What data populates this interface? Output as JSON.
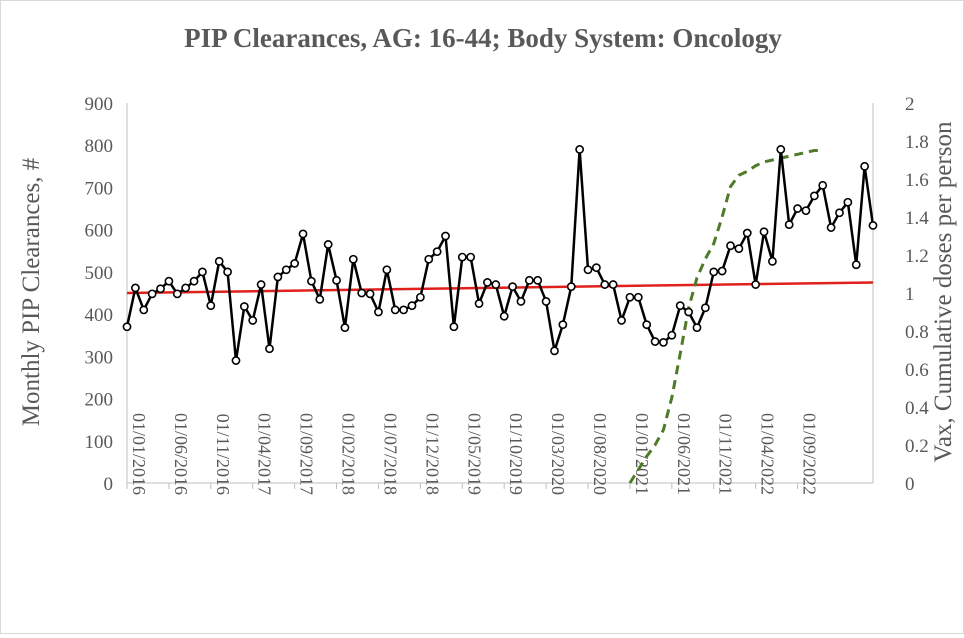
{
  "chart_data": {
    "type": "line",
    "title": "PIP Clearances, AG: 16-44; Body System: Oncology",
    "ylabel": "Monthly PIP Clearances, #",
    "y2label": "Vax, Cumulative doses per person",
    "ylim": [
      0,
      900
    ],
    "y2lim": [
      0,
      2
    ],
    "yticks": [
      "0",
      "100",
      "200",
      "300",
      "400",
      "500",
      "600",
      "700",
      "800",
      "900"
    ],
    "y2ticks": [
      "0",
      "0.2",
      "0.4",
      "0.6",
      "0.8",
      "1",
      "1.2",
      "1.4",
      "1.6",
      "1.8",
      "2"
    ],
    "xtick_labels": [
      "01/01/2016",
      "01/06/2016",
      "01/11/2016",
      "01/04/2017",
      "01/09/2017",
      "01/02/2018",
      "01/07/2018",
      "01/12/2018",
      "01/05/2019",
      "01/10/2019",
      "01/03/2020",
      "01/08/2020",
      "01/01/2021",
      "01/06/2021",
      "01/11/2021",
      "01/04/2022",
      "01/09/2022"
    ],
    "x_start": "2016-01",
    "grid": false,
    "series": [
      {
        "name": "Monthly PIP Clearances",
        "axis": "left",
        "color": "#000000",
        "marker": "circle",
        "values": [
          370,
          462,
          410,
          448,
          460,
          478,
          448,
          462,
          478,
          500,
          420,
          525,
          500,
          290,
          418,
          385,
          470,
          318,
          488,
          505,
          520,
          590,
          478,
          435,
          565,
          480,
          368,
          530,
          450,
          448,
          405,
          505,
          410,
          410,
          420,
          440,
          530,
          548,
          585,
          370,
          535,
          535,
          425,
          475,
          470,
          395,
          465,
          430,
          480,
          480,
          430,
          313,
          375,
          465,
          790,
          505,
          510,
          470,
          470,
          385,
          440,
          440,
          375,
          335,
          333,
          350,
          420,
          405,
          368,
          415,
          500,
          502,
          562,
          555,
          592,
          470,
          595,
          525,
          790,
          612,
          650,
          645,
          680,
          705,
          605,
          640,
          665,
          517,
          750,
          610
        ]
      },
      {
        "name": "Trend",
        "axis": "left",
        "color": "#e0201b",
        "values_endpoints": [
          450,
          475
        ]
      },
      {
        "name": "Vax, Cumulative doses per person",
        "axis": "right",
        "color": "#4f7a28",
        "style": "dashed",
        "points": [
          [
            60,
            0
          ],
          [
            61,
            0.07
          ],
          [
            62,
            0.14
          ],
          [
            63,
            0.2
          ],
          [
            64,
            0.28
          ],
          [
            65,
            0.45
          ],
          [
            66,
            0.68
          ],
          [
            67,
            0.92
          ],
          [
            68,
            1.08
          ],
          [
            69,
            1.18
          ],
          [
            70,
            1.26
          ],
          [
            71,
            1.4
          ],
          [
            72,
            1.56
          ],
          [
            73,
            1.62
          ],
          [
            74,
            1.64
          ],
          [
            75,
            1.67
          ],
          [
            76,
            1.69
          ],
          [
            77,
            1.7
          ],
          [
            78,
            1.71
          ],
          [
            79,
            1.72
          ],
          [
            80,
            1.73
          ],
          [
            81,
            1.74
          ],
          [
            82,
            1.75
          ],
          [
            83,
            1.75
          ]
        ]
      }
    ]
  }
}
